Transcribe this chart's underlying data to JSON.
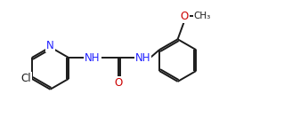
{
  "background": "#ffffff",
  "bond_color": "#1a1a1a",
  "N_color": "#2020ff",
  "O_color": "#cc0000",
  "Cl_color": "#1a1a1a",
  "linewidth": 1.4,
  "double_sep": 0.055,
  "fontsize": 8.5,
  "fig_w": 3.28,
  "fig_h": 1.5,
  "dpi": 100,
  "xlim": [
    0.0,
    8.5
  ],
  "ylim": [
    -1.8,
    2.0
  ]
}
